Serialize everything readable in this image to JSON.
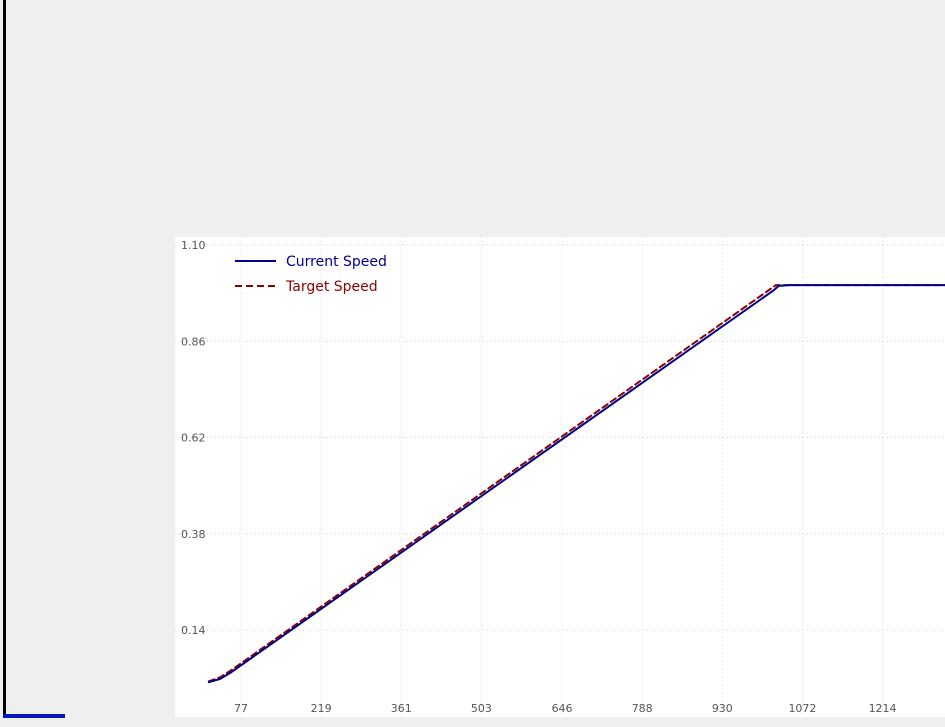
{
  "chart_data": {
    "type": "line",
    "title": "",
    "xlabel": "",
    "ylabel": "",
    "xlim": [
      0,
      1340
    ],
    "ylim": [
      -0.02,
      1.1
    ],
    "x_ticks": [
      77,
      219,
      361,
      503,
      646,
      788,
      930,
      1072,
      1214
    ],
    "y_ticks": [
      1.1,
      0.86,
      0.62,
      0.38,
      0.14
    ],
    "x_tick_labels": [
      "77",
      "219",
      "361",
      "503",
      "646",
      "788",
      "930",
      "1072",
      "1214"
    ],
    "y_tick_labels": [
      "1.10",
      "0.86",
      "0.62",
      "0.38",
      "0.14"
    ],
    "grid": true,
    "legend_position": "top-left",
    "series": [
      {
        "name": "Current Speed",
        "color": "#00008b",
        "style": "solid",
        "x": [
          20,
          40,
          60,
          1020,
          1030,
          1050,
          1340
        ],
        "y": [
          0.01,
          0.018,
          0.035,
          0.986,
          0.998,
          1.0,
          1.0
        ]
      },
      {
        "name": "Target Speed",
        "color": "#8b0000",
        "style": "dashed",
        "x": [
          20,
          40,
          60,
          1015,
          1025,
          1050,
          1340
        ],
        "y": [
          0.012,
          0.022,
          0.04,
          0.99,
          1.0,
          1.0,
          1.0
        ]
      }
    ]
  }
}
